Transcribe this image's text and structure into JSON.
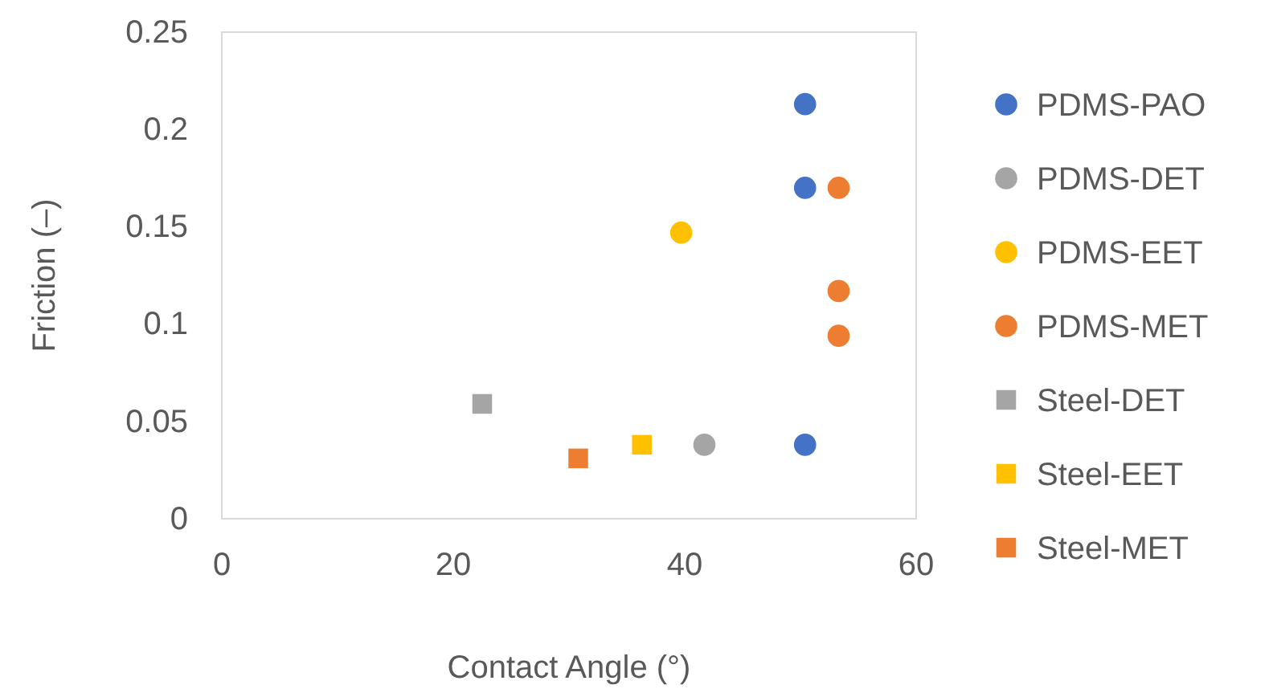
{
  "chart_data": {
    "type": "scatter",
    "xlabel": "Contact Angle (°)",
    "ylabel": "Friction (–)",
    "xlim": [
      0,
      60
    ],
    "xticks": [
      0,
      20,
      40,
      60
    ],
    "ylim": [
      0,
      0.25
    ],
    "yticks": [
      0,
      0.05,
      0.1,
      0.15,
      0.2,
      0.25
    ],
    "grid": false,
    "legend": "right",
    "series": [
      {
        "name": "PDMS-PAO",
        "color": "#4472c4",
        "marker": "circle",
        "x": [
          50.4,
          50.4,
          50.4
        ],
        "values": [
          0.213,
          0.17,
          0.038
        ]
      },
      {
        "name": "PDMS-DET",
        "color": "#a5a5a5",
        "marker": "circle",
        "x": [
          41.7
        ],
        "values": [
          0.038
        ]
      },
      {
        "name": "PDMS-EET",
        "color": "#ffc000",
        "marker": "circle",
        "x": [
          39.7
        ],
        "values": [
          0.147
        ]
      },
      {
        "name": "PDMS-MET",
        "color": "#ed7d31",
        "marker": "circle",
        "x": [
          53.3,
          53.3,
          53.3
        ],
        "values": [
          0.17,
          0.117,
          0.094
        ]
      },
      {
        "name": "Steel-DET",
        "color": "#a5a5a5",
        "marker": "square",
        "x": [
          22.5
        ],
        "values": [
          0.059
        ]
      },
      {
        "name": "Steel-EET",
        "color": "#ffc000",
        "marker": "square",
        "x": [
          36.3
        ],
        "values": [
          0.038
        ]
      },
      {
        "name": "Steel-MET",
        "color": "#ed7d31",
        "marker": "square",
        "x": [
          30.8
        ],
        "values": [
          0.031
        ]
      }
    ]
  }
}
